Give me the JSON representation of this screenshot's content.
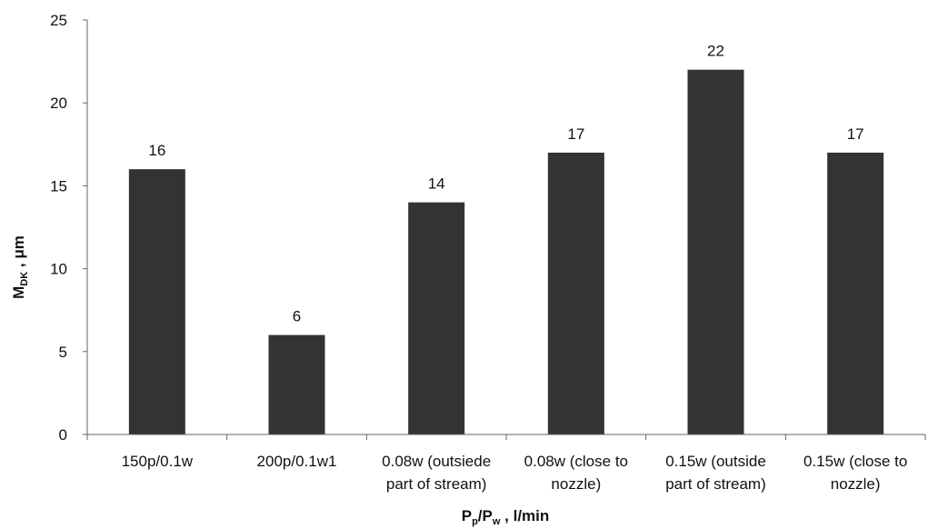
{
  "chart_data": {
    "type": "bar",
    "categories": [
      [
        "150p/0.1w"
      ],
      [
        "200p/0.1w1"
      ],
      [
        "0.08w (outsiede",
        "part of stream)"
      ],
      [
        "0.08w (close to",
        "nozzle)"
      ],
      [
        "0.15w (outside",
        "part of stream)"
      ],
      [
        "0.15w (close to",
        "nozzle)"
      ]
    ],
    "values": [
      16,
      6,
      14,
      17,
      22,
      17
    ],
    "data_labels": [
      "16",
      "6",
      "14",
      "17",
      "22",
      "17"
    ],
    "yticks": [
      "0",
      "5",
      "10",
      "15",
      "20",
      "25"
    ],
    "ylim": [
      0,
      25
    ],
    "ylabel": {
      "main": "M",
      "sub": "DK",
      "rest": " ,  μm"
    },
    "xlabel": {
      "p1": "P",
      "s1": "p",
      "p2": "/P",
      "s2": "w",
      "rest": " ,  l/min"
    },
    "title": "",
    "grid": false,
    "bar_color": "#333333"
  }
}
